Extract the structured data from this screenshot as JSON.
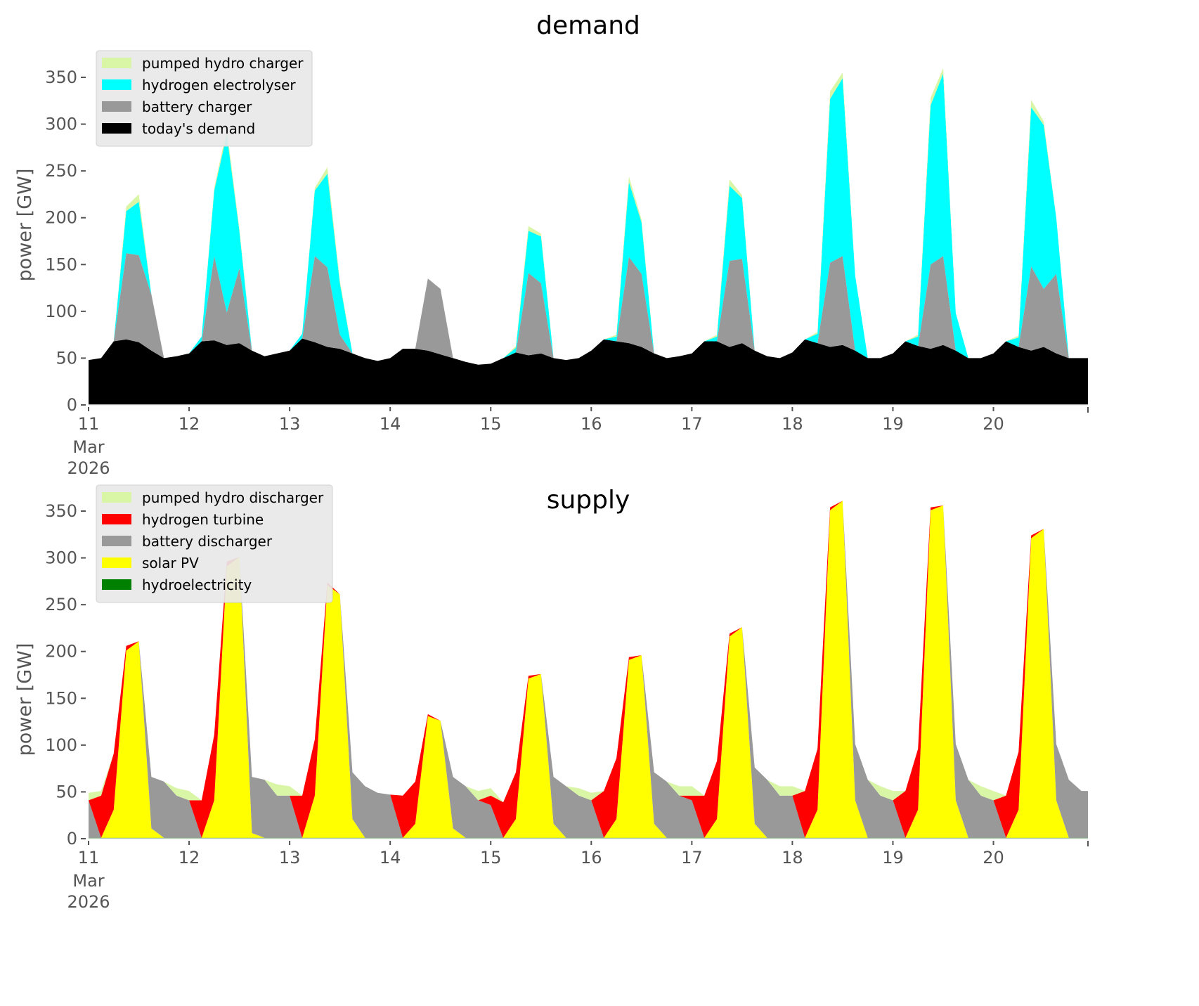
{
  "chart_data": [
    {
      "type": "area",
      "stacked": true,
      "title": "demand",
      "xlabel": "",
      "ylabel": "power [GW]",
      "ylim": [
        0,
        375
      ],
      "yticks": [
        0,
        50,
        100,
        150,
        200,
        250,
        300,
        350
      ],
      "xlim_days": [
        0,
        9.94
      ],
      "xticks": [
        {
          "day": 0,
          "label": "11",
          "sublabel": [
            "Mar",
            "2026"
          ]
        },
        {
          "day": 1,
          "label": "12"
        },
        {
          "day": 2,
          "label": "13"
        },
        {
          "day": 3,
          "label": "14"
        },
        {
          "day": 4,
          "label": "15"
        },
        {
          "day": 5,
          "label": "16"
        },
        {
          "day": 6,
          "label": "17"
        },
        {
          "day": 7,
          "label": "18"
        },
        {
          "day": 8,
          "label": "19"
        },
        {
          "day": 9,
          "label": "20"
        }
      ],
      "x_step_hours": 3,
      "x_start": "2026-03-11 00:00",
      "grid": false,
      "legend": {
        "placement": "top-left"
      },
      "series": [
        {
          "name": "today's demand",
          "color": "#000000",
          "values": [
            48,
            50,
            68,
            70,
            67,
            58,
            50,
            52,
            55,
            68,
            69,
            64,
            66,
            58,
            52,
            55,
            58,
            71,
            67,
            62,
            60,
            55,
            50,
            47,
            50,
            60,
            60,
            58,
            54,
            50,
            46,
            43,
            44,
            50,
            56,
            53,
            55,
            50,
            48,
            50,
            58,
            70,
            68,
            66,
            62,
            55,
            50,
            52,
            55,
            68,
            68,
            62,
            66,
            58,
            52,
            50,
            56,
            70,
            66,
            62,
            64,
            58,
            50,
            50,
            55,
            68,
            63,
            60,
            64,
            58,
            50,
            50,
            55,
            68,
            62,
            58,
            62,
            55,
            50,
            50,
            50
          ]
        },
        {
          "name": "battery charger",
          "color": "#999999",
          "values": [
            0,
            0,
            0,
            92,
            93,
            60,
            0,
            0,
            0,
            0,
            90,
            35,
            80,
            0,
            0,
            0,
            0,
            0,
            92,
            85,
            15,
            0,
            0,
            0,
            0,
            0,
            0,
            77,
            70,
            0,
            0,
            0,
            0,
            0,
            0,
            88,
            75,
            0,
            0,
            0,
            0,
            0,
            0,
            92,
            78,
            0,
            0,
            0,
            0,
            0,
            0,
            92,
            90,
            0,
            0,
            0,
            0,
            0,
            0,
            90,
            95,
            0,
            0,
            0,
            0,
            0,
            0,
            90,
            95,
            0,
            0,
            0,
            0,
            0,
            0,
            90,
            62,
            85,
            0,
            0,
            0
          ]
        },
        {
          "name": "hydrogen electrolyser",
          "color": "#00ffff",
          "values": [
            0,
            0,
            0,
            45,
            57,
            0,
            0,
            0,
            0,
            5,
            70,
            190,
            40,
            0,
            0,
            0,
            0,
            5,
            70,
            100,
            55,
            0,
            0,
            0,
            0,
            0,
            0,
            0,
            0,
            0,
            0,
            0,
            0,
            0,
            5,
            45,
            50,
            0,
            0,
            0,
            0,
            0,
            5,
            80,
            55,
            0,
            0,
            0,
            0,
            0,
            5,
            80,
            65,
            0,
            0,
            0,
            0,
            0,
            10,
            175,
            190,
            80,
            0,
            0,
            0,
            0,
            10,
            170,
            195,
            40,
            0,
            0,
            0,
            0,
            10,
            170,
            175,
            60,
            0,
            0,
            0
          ]
        },
        {
          "name": "pumped hydro charger",
          "color": "#d9f5a6",
          "values": [
            0,
            0,
            0,
            5,
            8,
            0,
            0,
            0,
            0,
            0,
            3,
            6,
            3,
            0,
            0,
            0,
            0,
            0,
            3,
            7,
            3,
            0,
            0,
            0,
            0,
            0,
            0,
            0,
            0,
            0,
            0,
            0,
            0,
            0,
            2,
            5,
            3,
            0,
            0,
            0,
            0,
            0,
            2,
            6,
            3,
            0,
            0,
            0,
            0,
            0,
            2,
            7,
            3,
            0,
            0,
            0,
            0,
            0,
            2,
            8,
            6,
            0,
            0,
            0,
            0,
            0,
            2,
            8,
            6,
            0,
            0,
            0,
            0,
            0,
            2,
            8,
            4,
            0,
            0,
            0,
            0
          ]
        }
      ]
    },
    {
      "type": "area",
      "stacked": true,
      "title": "supply",
      "xlabel": "",
      "ylabel": "power [GW]",
      "ylim": [
        0,
        375
      ],
      "yticks": [
        0,
        50,
        100,
        150,
        200,
        250,
        300,
        350
      ],
      "xlim_days": [
        0,
        9.94
      ],
      "xticks": [
        {
          "day": 0,
          "label": "11",
          "sublabel": [
            "Mar",
            "2026"
          ]
        },
        {
          "day": 1,
          "label": "12"
        },
        {
          "day": 2,
          "label": "13"
        },
        {
          "day": 3,
          "label": "14"
        },
        {
          "day": 4,
          "label": "15"
        },
        {
          "day": 5,
          "label": "16"
        },
        {
          "day": 6,
          "label": "17"
        },
        {
          "day": 7,
          "label": "18"
        },
        {
          "day": 8,
          "label": "19"
        },
        {
          "day": 9,
          "label": "20"
        }
      ],
      "x_step_hours": 3,
      "x_start": "2026-03-11 00:00",
      "grid": false,
      "legend": {
        "placement": "top-left"
      },
      "series": [
        {
          "name": "hydroelectricity",
          "color": "#008000",
          "values": [
            1,
            1,
            1,
            1,
            1,
            1,
            1,
            1,
            1,
            1,
            1,
            1,
            1,
            1,
            1,
            1,
            1,
            1,
            1,
            1,
            1,
            1,
            1,
            1,
            1,
            1,
            1,
            1,
            1,
            1,
            1,
            1,
            1,
            1,
            1,
            1,
            1,
            1,
            1,
            1,
            1,
            1,
            1,
            1,
            1,
            1,
            1,
            1,
            1,
            1,
            1,
            1,
            1,
            1,
            1,
            1,
            1,
            1,
            1,
            1,
            1,
            1,
            1,
            1,
            1,
            1,
            1,
            1,
            1,
            1,
            1,
            1,
            1,
            1,
            1,
            1,
            1,
            1,
            1,
            1,
            1
          ]
        },
        {
          "name": "solar PV",
          "color": "#ffff00",
          "values": [
            0,
            0,
            30,
            200,
            210,
            10,
            0,
            0,
            0,
            0,
            40,
            290,
            300,
            5,
            0,
            0,
            0,
            0,
            45,
            270,
            260,
            20,
            0,
            0,
            0,
            0,
            15,
            130,
            125,
            10,
            0,
            0,
            0,
            0,
            20,
            170,
            175,
            15,
            0,
            0,
            0,
            0,
            20,
            190,
            195,
            15,
            0,
            0,
            0,
            0,
            20,
            215,
            225,
            15,
            0,
            0,
            0,
            0,
            30,
            350,
            360,
            40,
            0,
            0,
            0,
            0,
            30,
            350,
            355,
            40,
            0,
            0,
            0,
            0,
            30,
            320,
            330,
            40,
            0,
            0,
            0
          ]
        },
        {
          "name": "battery discharger",
          "color": "#999999",
          "values": [
            40,
            0,
            0,
            0,
            0,
            55,
            60,
            45,
            40,
            0,
            0,
            0,
            0,
            60,
            62,
            45,
            45,
            0,
            0,
            0,
            0,
            50,
            55,
            48,
            46,
            0,
            0,
            0,
            0,
            55,
            55,
            40,
            35,
            0,
            0,
            0,
            0,
            50,
            55,
            45,
            40,
            0,
            0,
            0,
            0,
            55,
            60,
            45,
            40,
            0,
            0,
            0,
            0,
            60,
            62,
            45,
            45,
            0,
            0,
            0,
            0,
            60,
            62,
            45,
            40,
            0,
            0,
            0,
            0,
            60,
            62,
            45,
            40,
            0,
            0,
            0,
            0,
            60,
            62,
            50,
            50
          ]
        },
        {
          "name": "hydrogen turbine",
          "color": "#ff0000",
          "values": [
            0,
            45,
            60,
            5,
            0,
            0,
            0,
            0,
            0,
            40,
            70,
            5,
            0,
            0,
            0,
            0,
            0,
            45,
            60,
            3,
            0,
            0,
            0,
            0,
            0,
            45,
            45,
            2,
            0,
            0,
            0,
            0,
            10,
            38,
            50,
            3,
            0,
            0,
            0,
            0,
            0,
            50,
            65,
            3,
            0,
            0,
            0,
            0,
            5,
            45,
            62,
            3,
            0,
            0,
            0,
            0,
            0,
            50,
            65,
            3,
            0,
            0,
            0,
            0,
            0,
            50,
            65,
            3,
            0,
            0,
            0,
            0,
            0,
            45,
            62,
            3,
            0,
            0,
            0,
            0,
            0
          ]
        },
        {
          "name": "pumped hydro discharger",
          "color": "#d9f5a6",
          "values": [
            8,
            5,
            0,
            0,
            0,
            0,
            0,
            8,
            10,
            0,
            0,
            0,
            0,
            0,
            0,
            12,
            10,
            0,
            0,
            0,
            0,
            0,
            0,
            0,
            0,
            0,
            0,
            0,
            0,
            0,
            0,
            10,
            8,
            0,
            0,
            0,
            0,
            0,
            0,
            8,
            8,
            0,
            0,
            0,
            0,
            0,
            0,
            10,
            10,
            0,
            0,
            0,
            0,
            0,
            0,
            10,
            10,
            0,
            0,
            0,
            0,
            0,
            0,
            10,
            10,
            0,
            0,
            0,
            0,
            0,
            0,
            10,
            10,
            0,
            0,
            0,
            0,
            0,
            0,
            0,
            0
          ]
        }
      ]
    }
  ]
}
